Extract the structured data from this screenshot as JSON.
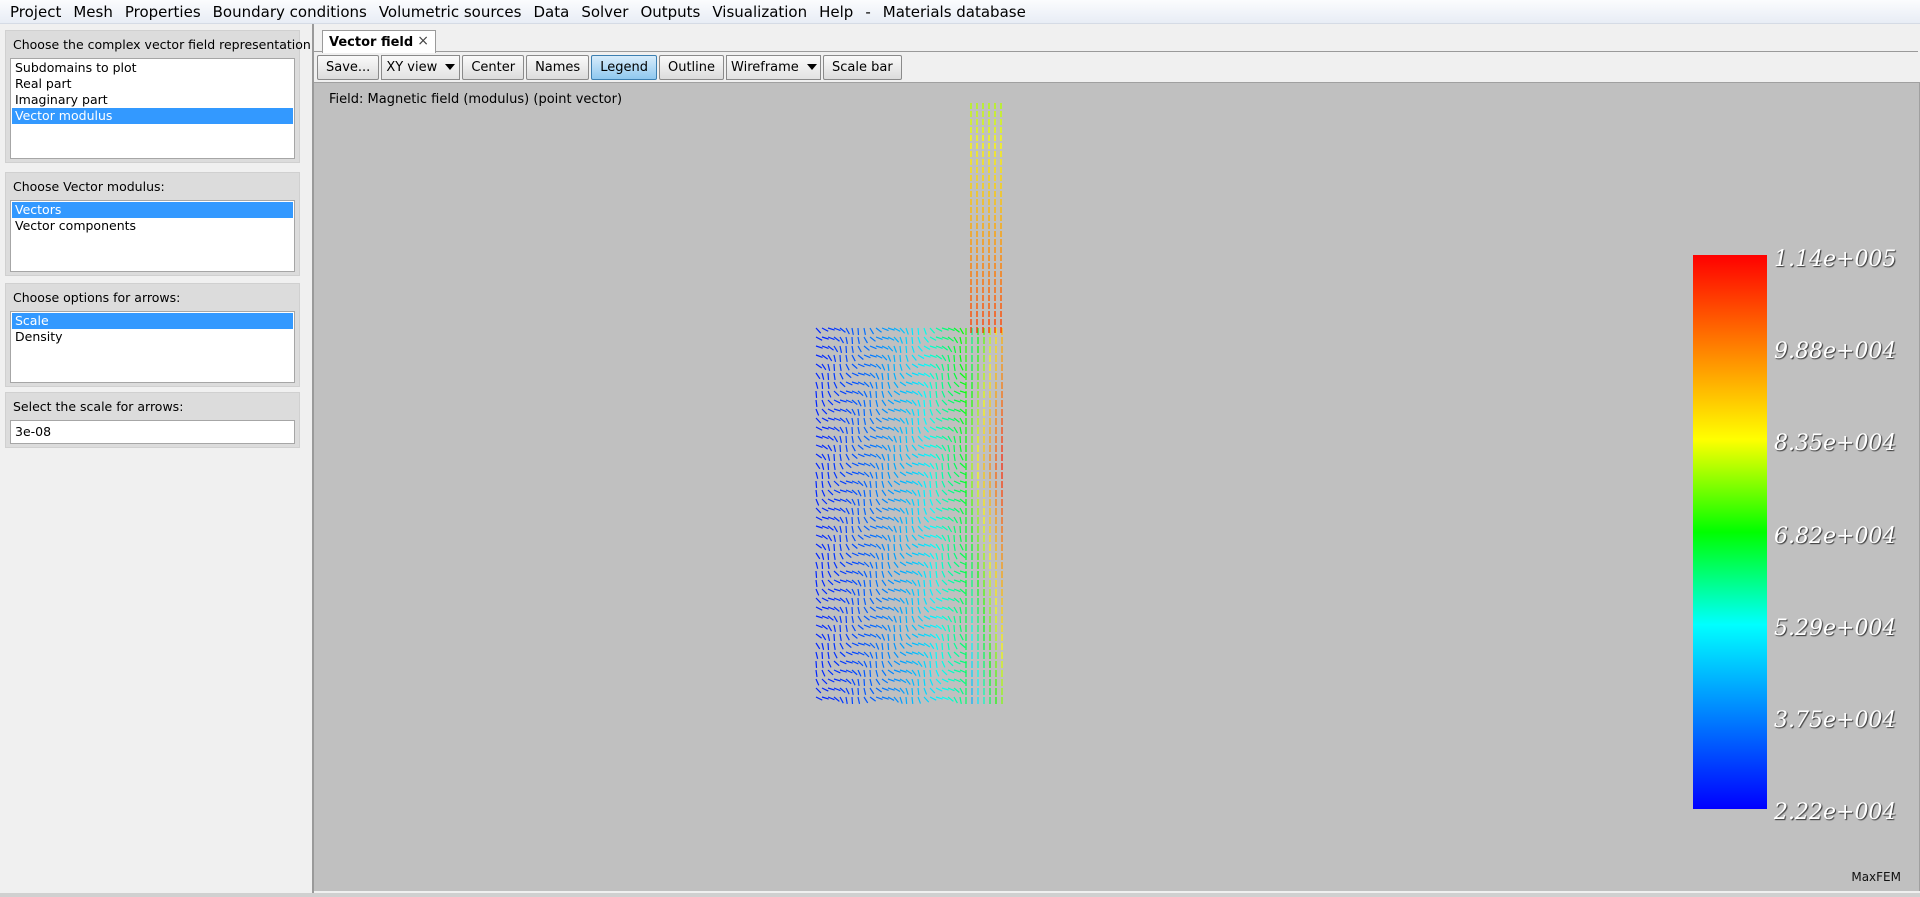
{
  "menu": [
    "Project",
    "Mesh",
    "Properties",
    "Boundary conditions",
    "Volumetric sources",
    "Data",
    "Solver",
    "Outputs",
    "Visualization",
    "Help",
    "-",
    "Materials database"
  ],
  "left": {
    "representation": {
      "title": "Choose the complex vector field representation:",
      "items": [
        "Subdomains to plot",
        "Real part",
        "Imaginary part",
        "Vector modulus"
      ],
      "selected": "Vector modulus"
    },
    "modulus": {
      "title": "Choose Vector modulus:",
      "items": [
        "Vectors",
        "Vector components"
      ],
      "selected": "Vectors"
    },
    "arrows": {
      "title": "Choose options for arrows:",
      "items": [
        "Scale",
        "Density"
      ],
      "selected": "Scale"
    },
    "scale": {
      "title": "Select the scale for arrows:",
      "value": "3e-08"
    }
  },
  "tab": {
    "label": "Vector field",
    "close": "×"
  },
  "toolbar": {
    "save": "Save...",
    "view": "XY view",
    "center": "Center",
    "names": "Names",
    "legend": "Legend",
    "outline": "Outline",
    "wireframe": "Wireframe",
    "scalebar": "Scale bar"
  },
  "viewport": {
    "field_label": "Field: Magnetic field (modulus) (point vector)",
    "watermark": "MaxFEM",
    "colorbar": {
      "labels": [
        "1.14e+005",
        "9.88e+004",
        "8.35e+004",
        "6.82e+004",
        "5.29e+004",
        "3.75e+004",
        "2.22e+004"
      ],
      "colors": [
        "#ff0000",
        "#ff8000",
        "#ffff00",
        "#00ff00",
        "#00ffff",
        "#0080ff",
        "#0000ff"
      ],
      "min": 22200,
      "max": 114000
    }
  }
}
